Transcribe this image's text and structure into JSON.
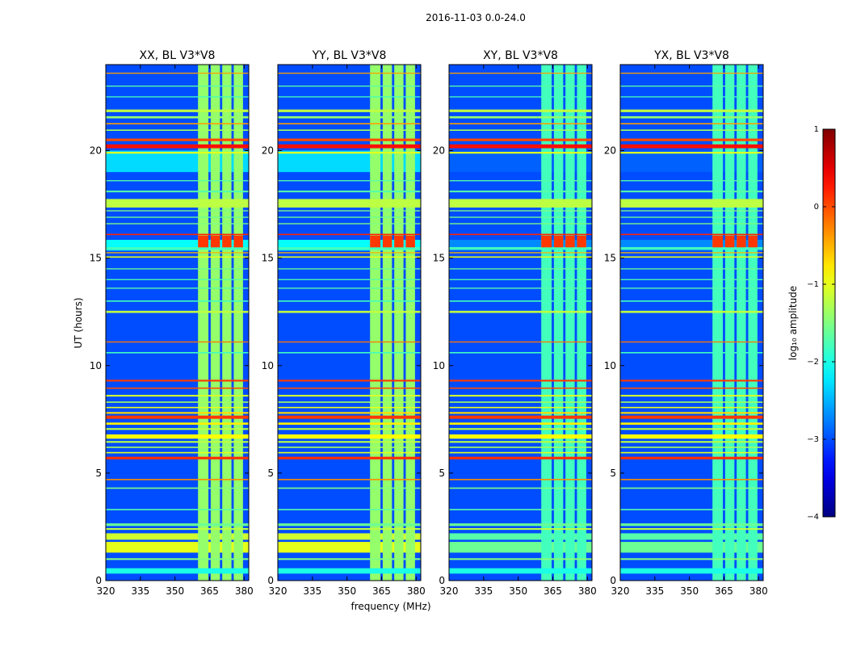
{
  "chart_data": {
    "type": "heatmap",
    "suptitle": "2016-11-03 0.0-24.0",
    "xlabel": "frequency (MHz)",
    "ylabel": "UT (hours)",
    "xlim": [
      320,
      382
    ],
    "ylim": [
      0,
      24
    ],
    "xticks": [
      320,
      335,
      350,
      365,
      380
    ],
    "yticks": [
      0,
      5,
      10,
      15,
      20
    ],
    "colorbar": {
      "label": "log₁₀ amplitude",
      "range": [
        -4,
        1
      ],
      "ticks": [
        1,
        0,
        -1,
        -2,
        -3,
        -4
      ],
      "tick_labels": [
        "1",
        "0",
        "−1",
        "−2",
        "−3",
        "−4"
      ],
      "colormap": "jet"
    },
    "background_level": -3.0,
    "hot_band": {
      "freq_range_mhz": [
        360,
        380
      ],
      "columns_mhz": [
        [
          360,
          364.5
        ],
        [
          365.5,
          369.5
        ],
        [
          370.5,
          374.5
        ],
        [
          375.5,
          379.5
        ]
      ],
      "level": -1.4
    },
    "time_features": [
      {
        "t": 0.45,
        "w": 0.25,
        "level": -2.0,
        "full": true
      },
      {
        "t": 1.0,
        "w": 0.08,
        "level": -1.5,
        "full": true
      },
      {
        "t": 1.55,
        "w": 0.5,
        "level": -1.0,
        "full": false
      },
      {
        "t": 2.05,
        "w": 0.3,
        "level": -1.1,
        "full": false
      },
      {
        "t": 2.4,
        "w": 0.08,
        "level": -1.2,
        "full": true
      },
      {
        "t": 2.6,
        "w": 0.12,
        "level": -1.6,
        "full": true
      },
      {
        "t": 3.3,
        "w": 0.06,
        "level": -1.7,
        "full": true
      },
      {
        "t": 4.3,
        "w": 0.06,
        "level": -1.5,
        "full": true
      },
      {
        "t": 4.7,
        "w": 0.06,
        "level": -0.3,
        "full": true
      },
      {
        "t": 5.7,
        "w": 0.12,
        "level": 0.15,
        "full": true
      },
      {
        "t": 5.95,
        "w": 0.06,
        "level": -1.0,
        "full": true
      },
      {
        "t": 6.2,
        "w": 0.06,
        "level": -1.3,
        "full": true
      },
      {
        "t": 6.45,
        "w": 0.08,
        "level": -1.2,
        "full": true
      },
      {
        "t": 6.7,
        "w": 0.2,
        "level": -0.9,
        "full": true
      },
      {
        "t": 7.05,
        "w": 0.08,
        "level": -1.2,
        "full": true
      },
      {
        "t": 7.3,
        "w": 0.1,
        "level": -0.8,
        "full": true
      },
      {
        "t": 7.6,
        "w": 0.15,
        "level": 0.1,
        "full": true
      },
      {
        "t": 7.8,
        "w": 0.08,
        "level": -0.7,
        "full": true
      },
      {
        "t": 8.05,
        "w": 0.06,
        "level": -1.0,
        "full": true
      },
      {
        "t": 8.3,
        "w": 0.06,
        "level": -1.3,
        "full": true
      },
      {
        "t": 8.6,
        "w": 0.08,
        "level": -1.1,
        "full": true
      },
      {
        "t": 8.95,
        "w": 0.06,
        "level": 0.0,
        "full": true
      },
      {
        "t": 9.3,
        "w": 0.08,
        "level": 0.1,
        "full": true
      },
      {
        "t": 10.6,
        "w": 0.06,
        "level": -1.8,
        "full": true
      },
      {
        "t": 11.1,
        "w": 0.05,
        "level": -0.2,
        "full": true
      },
      {
        "t": 12.5,
        "w": 0.1,
        "level": -1.2,
        "full": true
      },
      {
        "t": 13.0,
        "w": 0.06,
        "level": -1.8,
        "full": true
      },
      {
        "t": 13.6,
        "w": 0.05,
        "level": -1.7,
        "full": true
      },
      {
        "t": 14.0,
        "w": 0.05,
        "level": -1.7,
        "full": true
      },
      {
        "t": 14.5,
        "w": 0.05,
        "level": -1.6,
        "full": true
      },
      {
        "t": 15.05,
        "w": 0.06,
        "level": -1.0,
        "full": true
      },
      {
        "t": 15.25,
        "w": 0.05,
        "level": -0.5,
        "full": true
      },
      {
        "t": 15.45,
        "w": 0.12,
        "level": -1.8,
        "full": true
      },
      {
        "t": 15.6,
        "w": 0.5,
        "level": -2.1,
        "full": false
      },
      {
        "t": 16.1,
        "w": 0.06,
        "level": 0.2,
        "full": true
      },
      {
        "t": 16.6,
        "w": 0.05,
        "level": -1.5,
        "full": true
      },
      {
        "t": 16.9,
        "w": 0.05,
        "level": -1.6,
        "full": true
      },
      {
        "t": 17.2,
        "w": 0.05,
        "level": -1.5,
        "full": true
      },
      {
        "t": 17.55,
        "w": 0.4,
        "level": -1.2,
        "full": true
      },
      {
        "t": 18.1,
        "w": 0.08,
        "level": -1.7,
        "full": true
      },
      {
        "t": 18.6,
        "w": 0.05,
        "level": -1.7,
        "full": true
      },
      {
        "t": 19.5,
        "w": 1.0,
        "level": -2.3,
        "full": false
      },
      {
        "t": 19.9,
        "w": 0.08,
        "level": -1.0,
        "full": true
      },
      {
        "t": 20.2,
        "w": 0.18,
        "level": 0.3,
        "full": true
      },
      {
        "t": 20.5,
        "w": 0.12,
        "level": 0.0,
        "full": true
      },
      {
        "t": 20.95,
        "w": 0.06,
        "level": -1.3,
        "full": true
      },
      {
        "t": 21.25,
        "w": 0.06,
        "level": -0.4,
        "full": true
      },
      {
        "t": 21.55,
        "w": 0.1,
        "level": -1.4,
        "full": true
      },
      {
        "t": 21.85,
        "w": 0.12,
        "level": -1.2,
        "full": true
      },
      {
        "t": 22.5,
        "w": 0.05,
        "level": -1.8,
        "full": true
      },
      {
        "t": 23.0,
        "w": 0.05,
        "level": -1.7,
        "full": true
      },
      {
        "t": 23.6,
        "w": 0.05,
        "level": -0.4,
        "full": true
      }
    ],
    "panels": [
      {
        "title": "XX, BL V3*V8",
        "stokes": "XX",
        "band_boost": 0.0
      },
      {
        "title": "YY, BL V3*V8",
        "stokes": "YY",
        "band_boost": 0.0
      },
      {
        "title": "XY, BL V3*V8",
        "stokes": "XY",
        "band_boost": -0.4
      },
      {
        "title": "YX, BL V3*V8",
        "stokes": "YX",
        "band_boost": -0.4
      }
    ]
  }
}
